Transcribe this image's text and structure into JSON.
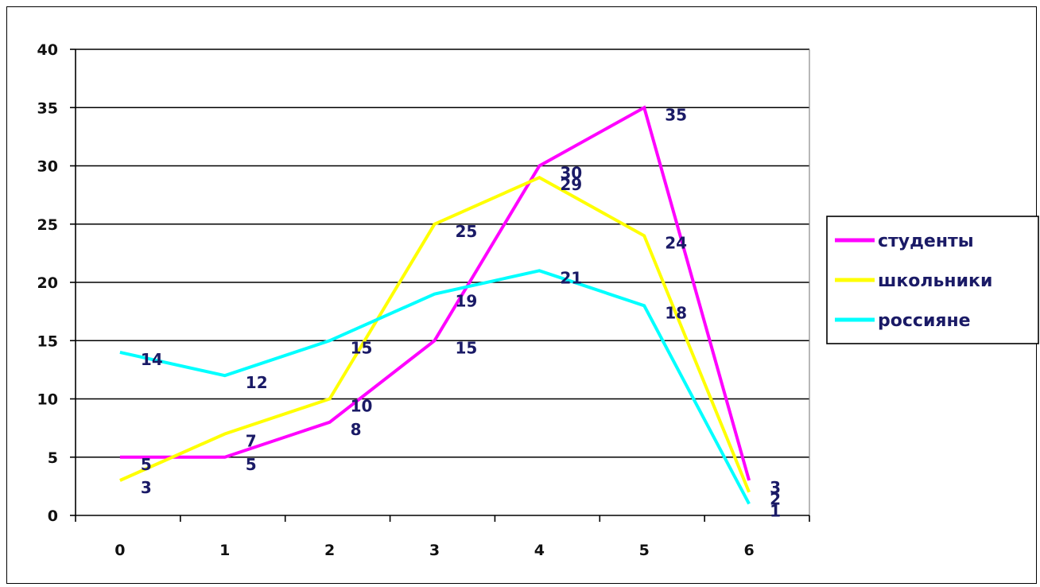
{
  "chart_data": {
    "type": "line",
    "title": "",
    "xlabel": "",
    "ylabel": "",
    "x": [
      0,
      1,
      2,
      3,
      4,
      5,
      6
    ],
    "ylim": [
      0,
      40
    ],
    "yticks": [
      0,
      5,
      10,
      15,
      20,
      25,
      30,
      35,
      40
    ],
    "grid": true,
    "legend_position": "right",
    "series": [
      {
        "name": "студенты",
        "color": "#ff00ff",
        "values": [
          5,
          5,
          8,
          15,
          30,
          35,
          3
        ],
        "labels": [
          "5",
          "5",
          "8",
          "15",
          "30",
          "35",
          "3"
        ]
      },
      {
        "name": "школьники",
        "color": "#ffff00",
        "values": [
          3,
          7,
          10,
          25,
          29,
          24,
          2
        ],
        "labels": [
          "3",
          "7",
          "10",
          "25",
          "29",
          "24",
          "2"
        ]
      },
      {
        "name": "россияне",
        "color": "#00ffff",
        "values": [
          14,
          12,
          15,
          19,
          21,
          18,
          1
        ],
        "labels": [
          "14",
          "12",
          "15",
          "19",
          "21",
          "18",
          "1"
        ]
      }
    ]
  }
}
